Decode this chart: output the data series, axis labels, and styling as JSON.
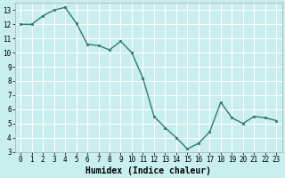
{
  "x": [
    0,
    1,
    2,
    3,
    4,
    5,
    6,
    7,
    8,
    9,
    10,
    11,
    12,
    13,
    14,
    15,
    16,
    17,
    18,
    19,
    20,
    21,
    22,
    23
  ],
  "y": [
    12.0,
    12.0,
    12.6,
    13.0,
    13.2,
    12.1,
    10.6,
    10.5,
    10.2,
    10.8,
    10.0,
    8.2,
    5.5,
    4.7,
    4.0,
    3.2,
    3.6,
    4.4,
    6.5,
    5.4,
    5.0,
    5.5,
    5.4,
    5.2
  ],
  "line_color": "#2e7d6e",
  "marker": "o",
  "markersize": 1.8,
  "linewidth": 1.0,
  "background_color": "#c8eeee",
  "grid_color": "#ffffff",
  "xlabel": "Humidex (Indice chaleur)",
  "xlabel_fontsize": 7,
  "xlabel_fontweight": "bold",
  "xlim": [
    -0.5,
    23.5
  ],
  "ylim": [
    3,
    13.5
  ],
  "yticks": [
    3,
    4,
    5,
    6,
    7,
    8,
    9,
    10,
    11,
    12,
    13
  ],
  "xticks": [
    0,
    1,
    2,
    3,
    4,
    5,
    6,
    7,
    8,
    9,
    10,
    11,
    12,
    13,
    14,
    15,
    16,
    17,
    18,
    19,
    20,
    21,
    22,
    23
  ],
  "tick_fontsize": 5.5,
  "tick_color": "#000000",
  "spine_color": "#aaaaaa"
}
